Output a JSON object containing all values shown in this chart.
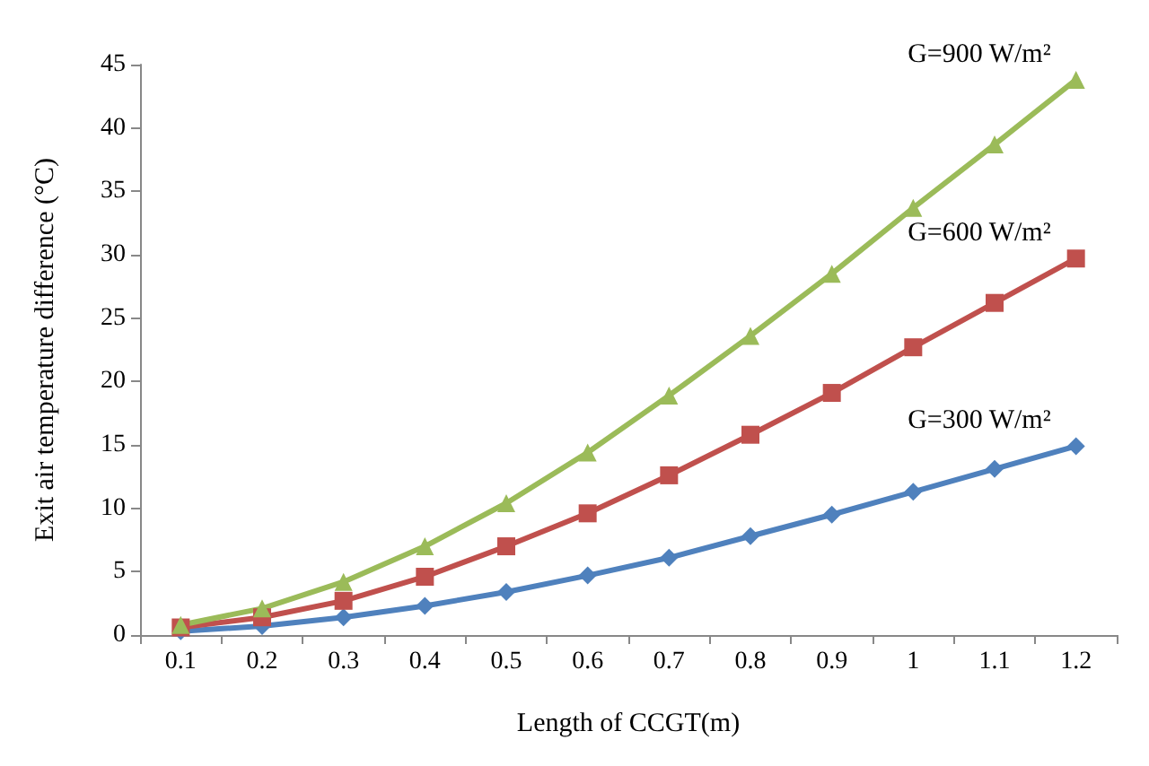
{
  "chart_data": {
    "type": "line",
    "xlabel": "Length of CCGT(m)",
    "ylabel": "Exit air temperature difference (°C)",
    "categories": [
      "0.1",
      "0.2",
      "0.3",
      "0.4",
      "0.5",
      "0.6",
      "0.7",
      "0.8",
      "0.9",
      "1",
      "1.1",
      "1.2"
    ],
    "ylim": [
      0,
      45
    ],
    "yticks": [
      0,
      5,
      10,
      15,
      20,
      25,
      30,
      35,
      40,
      45
    ],
    "grid": false,
    "legend": false,
    "series": [
      {
        "name": "G=300 W/m²",
        "color": "#4f81bd",
        "marker": "diamond",
        "values": [
          0.3,
          0.7,
          1.4,
          2.3,
          3.4,
          4.7,
          6.1,
          7.8,
          9.5,
          11.3,
          13.1,
          14.9
        ]
      },
      {
        "name": "G=600 W/m²",
        "color": "#c0504d",
        "marker": "square",
        "values": [
          0.6,
          1.4,
          2.7,
          4.6,
          7.0,
          9.6,
          12.6,
          15.8,
          19.1,
          22.7,
          26.2,
          29.7
        ]
      },
      {
        "name": "G=900 W/m²",
        "color": "#9bbb59",
        "marker": "triangle",
        "values": [
          0.8,
          2.1,
          4.2,
          7.0,
          10.4,
          14.4,
          18.9,
          23.6,
          28.5,
          33.7,
          38.7,
          43.8
        ]
      }
    ]
  }
}
